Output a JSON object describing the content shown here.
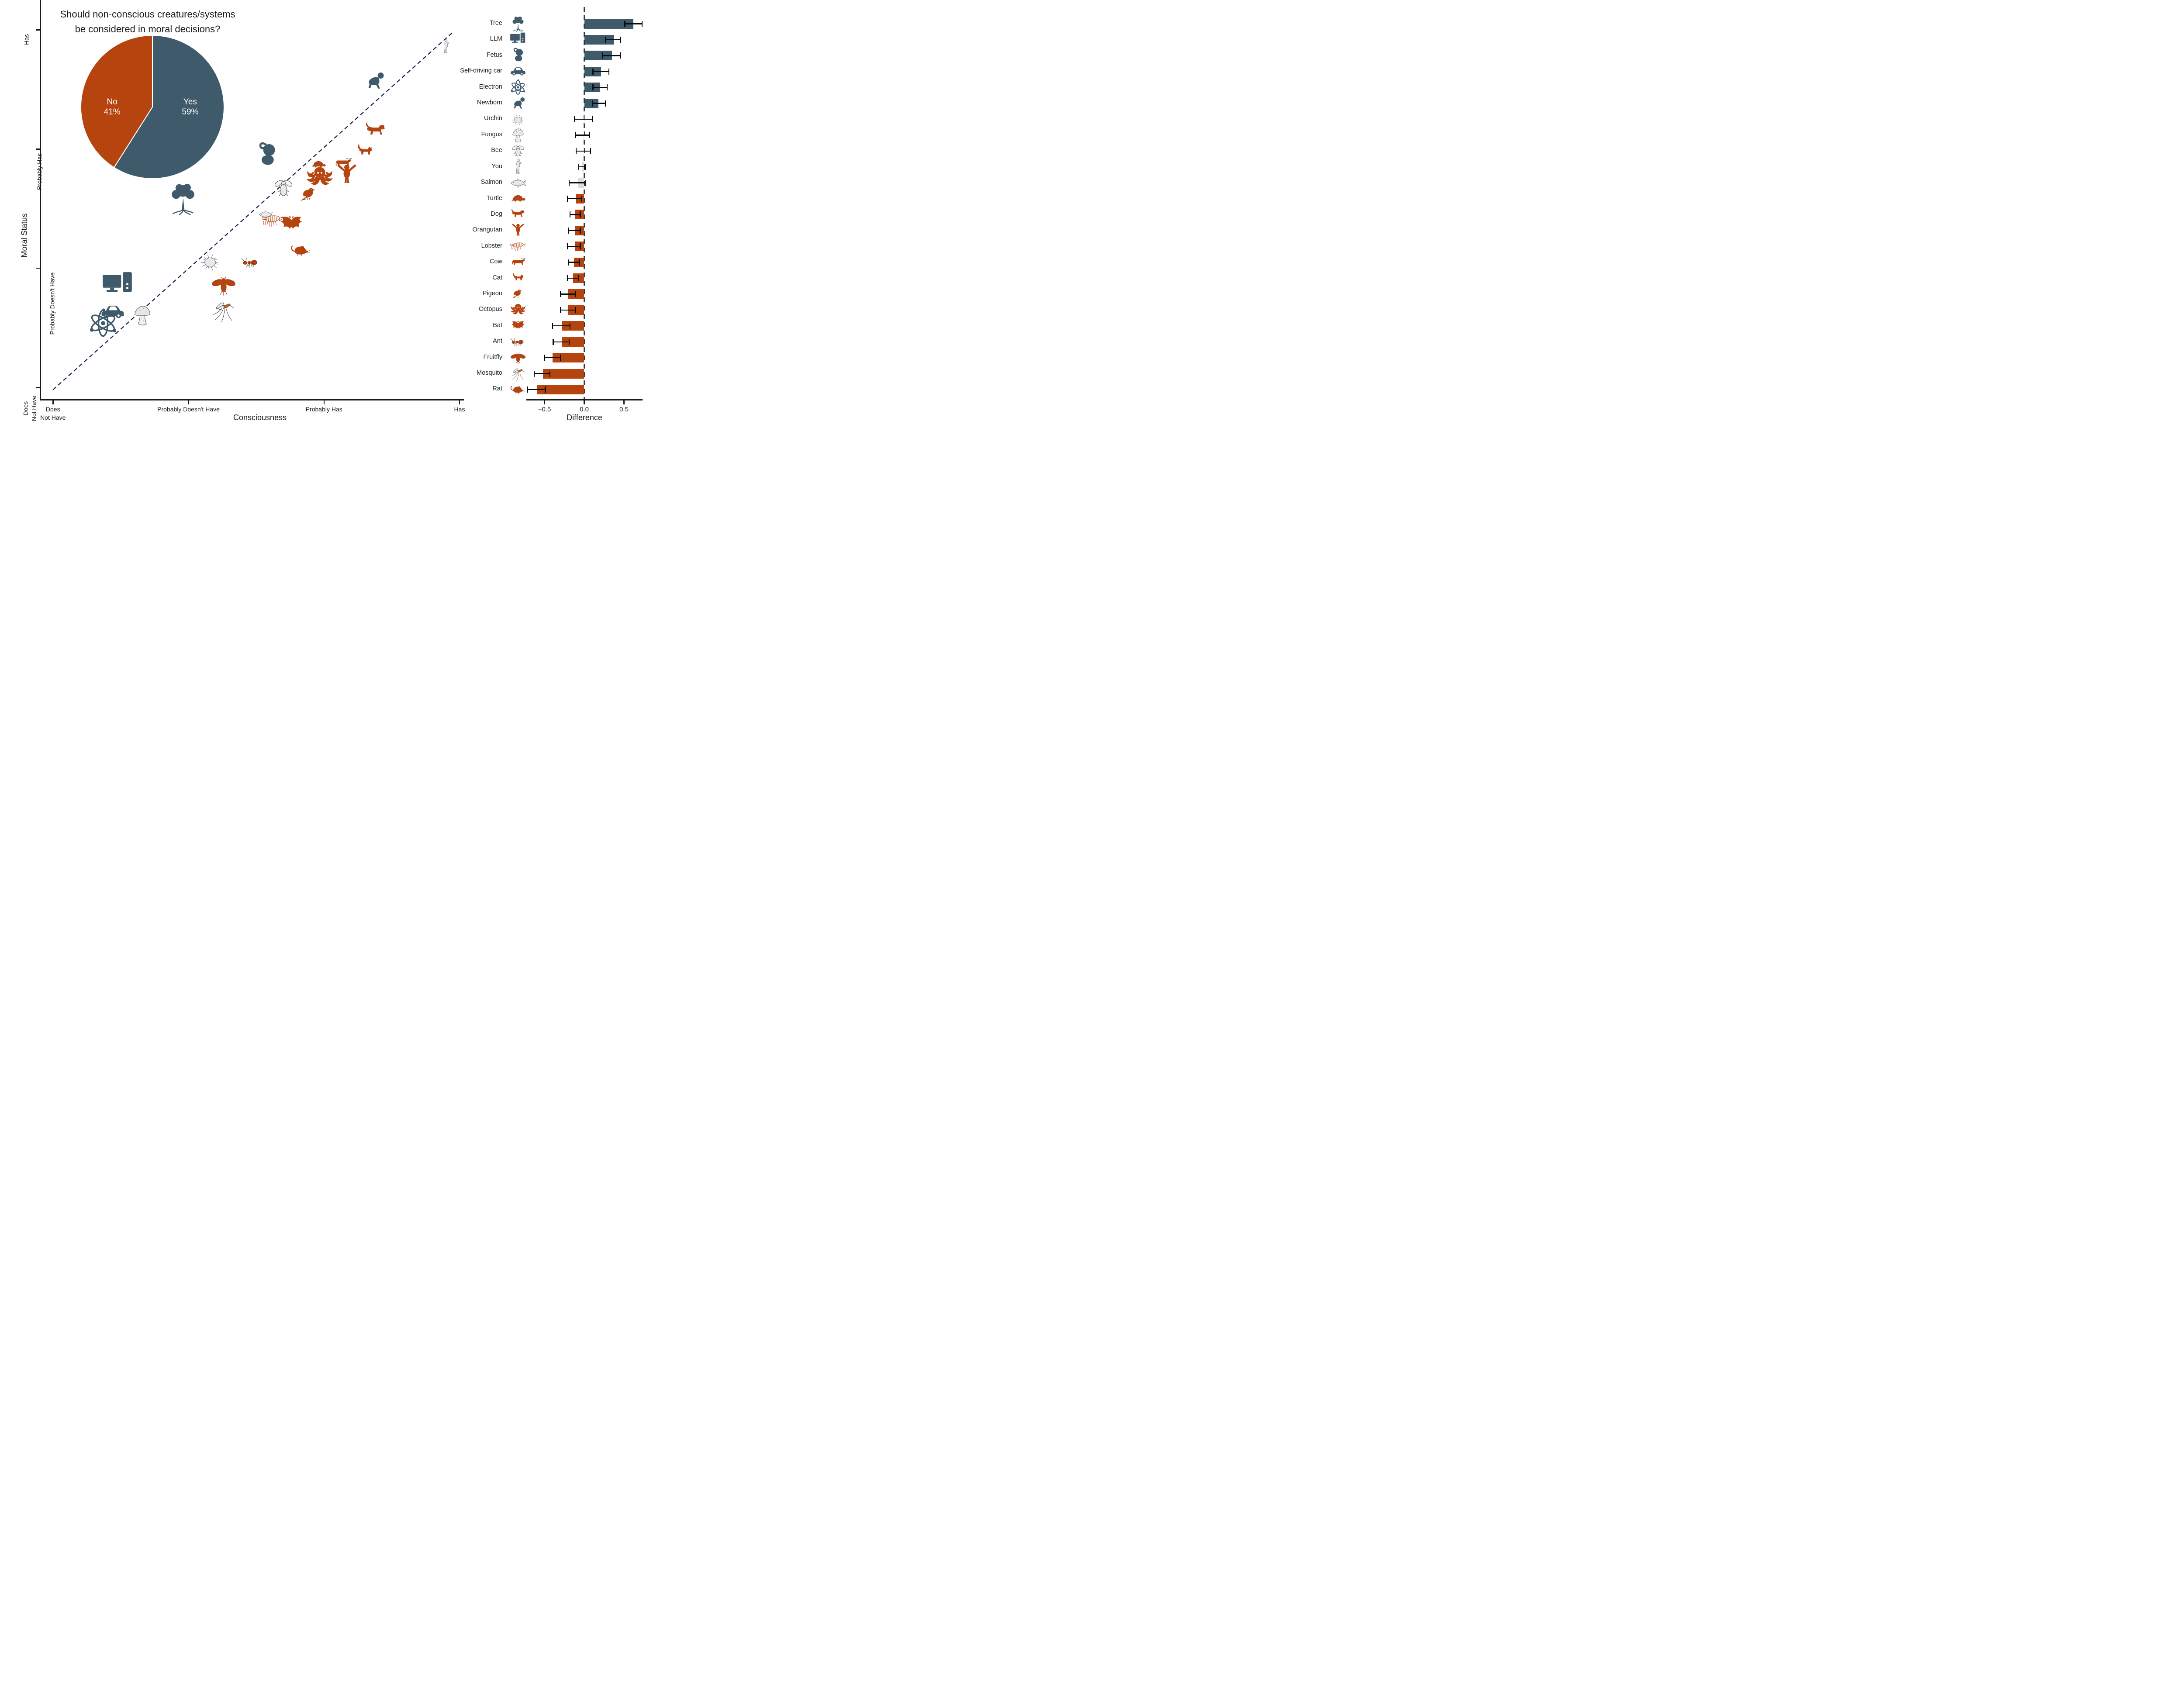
{
  "palette": {
    "blue": "#3E5A6B",
    "orange": "#B5440F",
    "gray_fill": "#E8E8E8",
    "gray_stroke": "#4a4a4a",
    "gray_bar": "#DCDCDC",
    "identity_line": "#1B2150",
    "zero_line": "#0a0a0a",
    "text": "#1a1a1a",
    "background": "#ffffff"
  },
  "chart_data": [
    {
      "type": "pie",
      "title_line1": "Should non-conscious creatures/systems",
      "title_line2": "be considered in moral decisions?",
      "slices": [
        {
          "label": "Yes",
          "pct": 59,
          "color_key": "blue",
          "label_side": "right"
        },
        {
          "label": "No",
          "pct": 41,
          "color_key": "orange",
          "label_side": "left"
        }
      ],
      "start": "top",
      "direction": "clockwise"
    },
    {
      "type": "scatter",
      "xlabel": "Consciousness",
      "ylabel": "Moral Status",
      "x_tick_labels": [
        [
          "Does",
          "Not Have"
        ],
        [
          "Probably Doesn't Have"
        ],
        [
          "Probably Has"
        ],
        [
          "Has"
        ]
      ],
      "y_tick_labels": [
        [
          "Does",
          "Not Have"
        ],
        [
          "Probably Doesn't Have"
        ],
        [
          "Probably Has"
        ],
        [
          "Has"
        ]
      ],
      "axis_categories": [
        1,
        2,
        3,
        4
      ],
      "identity_line": true,
      "points": [
        {
          "label": "Tree",
          "icon": "tree",
          "x": 1.96,
          "y": 2.58,
          "w": 78,
          "h": 78,
          "group": "blue"
        },
        {
          "label": "LLM",
          "icon": "computer",
          "x": 1.48,
          "y": 1.85,
          "w": 84,
          "h": 74,
          "group": "blue"
        },
        {
          "label": "Fetus",
          "icon": "fetus",
          "x": 2.58,
          "y": 2.95,
          "w": 64,
          "h": 70,
          "group": "blue"
        },
        {
          "label": "Self-driving car",
          "icon": "car",
          "x": 1.44,
          "y": 1.63,
          "w": 80,
          "h": 58,
          "group": "blue"
        },
        {
          "label": "Electron",
          "icon": "atom",
          "x": 1.37,
          "y": 1.54,
          "w": 76,
          "h": 70,
          "group": "blue"
        },
        {
          "label": "Newborn",
          "icon": "baby",
          "x": 3.37,
          "y": 3.57,
          "w": 64,
          "h": 54,
          "group": "blue"
        },
        {
          "label": "Urchin",
          "icon": "urchin",
          "x": 2.16,
          "y": 2.06,
          "w": 64,
          "h": 58,
          "group": "gray"
        },
        {
          "label": "Fungus",
          "icon": "fungus",
          "x": 1.66,
          "y": 1.61,
          "w": 54,
          "h": 80,
          "group": "gray"
        },
        {
          "label": "Bee",
          "icon": "bee",
          "x": 2.7,
          "y": 2.67,
          "w": 58,
          "h": 56,
          "group": "gray"
        },
        {
          "label": "You",
          "icon": "human",
          "x": 3.9,
          "y": 3.86,
          "w": 34,
          "h": 88,
          "group": "gray"
        },
        {
          "label": "Salmon",
          "icon": "fish",
          "x": 2.57,
          "y": 2.45,
          "w": 74,
          "h": 34,
          "group": "gray"
        },
        {
          "label": "Turtle",
          "icon": "turtle",
          "x": 2.96,
          "y": 2.87,
          "w": 58,
          "h": 38,
          "group": "orange"
        },
        {
          "label": "Dog",
          "icon": "dog",
          "x": 3.38,
          "y": 3.15,
          "w": 66,
          "h": 56,
          "group": "orange"
        },
        {
          "label": "Orangutan",
          "icon": "orangutan",
          "x": 3.17,
          "y": 2.78,
          "w": 60,
          "h": 66,
          "group": "orange"
        },
        {
          "label": "Lobster",
          "icon": "lobster",
          "x": 2.62,
          "y": 2.4,
          "w": 68,
          "h": 52,
          "group": "orange"
        },
        {
          "label": "Cow",
          "icon": "cow",
          "x": 3.14,
          "y": 2.88,
          "w": 64,
          "h": 46,
          "group": "orange"
        },
        {
          "label": "Cat",
          "icon": "cat",
          "x": 3.3,
          "y": 2.98,
          "w": 62,
          "h": 52,
          "group": "orange"
        },
        {
          "label": "Pigeon",
          "icon": "pigeon",
          "x": 2.89,
          "y": 2.62,
          "w": 58,
          "h": 56,
          "group": "orange"
        },
        {
          "label": "Octopus",
          "icon": "octopus",
          "x": 2.97,
          "y": 2.76,
          "w": 66,
          "h": 66,
          "group": "orange"
        },
        {
          "label": "Bat",
          "icon": "bat",
          "x": 2.76,
          "y": 2.37,
          "w": 64,
          "h": 62,
          "group": "orange"
        },
        {
          "label": "Ant",
          "icon": "ant",
          "x": 2.46,
          "y": 2.05,
          "w": 58,
          "h": 46,
          "group": "orange"
        },
        {
          "label": "Fruitfly",
          "icon": "fruitfly",
          "x": 2.26,
          "y": 1.86,
          "w": 60,
          "h": 64,
          "group": "orange"
        },
        {
          "label": "Mosquito",
          "icon": "mosquito",
          "x": 2.26,
          "y": 1.64,
          "w": 60,
          "h": 80,
          "group": "gray"
        },
        {
          "label": "Rat",
          "icon": "rat",
          "x": 2.83,
          "y": 2.15,
          "w": 60,
          "h": 50,
          "group": "orange"
        }
      ]
    },
    {
      "type": "bar",
      "orientation": "horizontal",
      "xlabel": "Difference",
      "xlim": [
        -0.75,
        0.75
      ],
      "x_ticks": [
        {
          "value": -0.5,
          "label": "−0.5"
        },
        {
          "value": 0.0,
          "label": "0.0"
        },
        {
          "value": 0.5,
          "label": "0.5"
        }
      ],
      "zero_line": true,
      "items": [
        {
          "label": "Tree",
          "icon": "tree",
          "icon_group": "blue",
          "bar_group": "blue",
          "value": 0.62,
          "ci": [
            0.51,
            0.73
          ]
        },
        {
          "label": "LLM",
          "icon": "computer",
          "icon_group": "blue",
          "bar_group": "blue",
          "value": 0.37,
          "ci": [
            0.27,
            0.46
          ]
        },
        {
          "label": "Fetus",
          "icon": "fetus",
          "icon_group": "blue",
          "bar_group": "blue",
          "value": 0.35,
          "ci": [
            0.23,
            0.46
          ]
        },
        {
          "label": "Self-driving car",
          "icon": "car",
          "icon_group": "blue",
          "bar_group": "blue",
          "value": 0.21,
          "ci": [
            0.11,
            0.31
          ]
        },
        {
          "label": "Electron",
          "icon": "atom",
          "icon_group": "blue",
          "bar_group": "blue",
          "value": 0.2,
          "ci": [
            0.11,
            0.29
          ]
        },
        {
          "label": "Newborn",
          "icon": "baby",
          "icon_group": "blue",
          "bar_group": "blue",
          "value": 0.18,
          "ci": [
            0.1,
            0.27
          ]
        },
        {
          "label": "Urchin",
          "icon": "urchin",
          "icon_group": "gray",
          "bar_group": "gray",
          "value": -0.005,
          "ci": [
            -0.12,
            0.1
          ]
        },
        {
          "label": "Fungus",
          "icon": "fungus",
          "icon_group": "gray",
          "bar_group": "gray",
          "value": -0.01,
          "ci": [
            -0.11,
            0.07
          ]
        },
        {
          "label": "Bee",
          "icon": "bee",
          "icon_group": "gray",
          "bar_group": "gray",
          "value": -0.01,
          "ci": [
            -0.1,
            0.08
          ]
        },
        {
          "label": "You",
          "icon": "human",
          "icon_group": "gray",
          "bar_group": "gray",
          "value": -0.03,
          "ci": [
            -0.07,
            0.01
          ]
        },
        {
          "label": "Salmon",
          "icon": "fish",
          "icon_group": "gray",
          "bar_group": "gray",
          "value": -0.08,
          "ci": [
            -0.19,
            0.02
          ]
        },
        {
          "label": "Turtle",
          "icon": "turtle",
          "icon_group": "orange",
          "bar_group": "orange",
          "value": -0.1,
          "ci": [
            -0.21,
            -0.03
          ]
        },
        {
          "label": "Dog",
          "icon": "dog",
          "icon_group": "orange",
          "bar_group": "orange",
          "value": -0.11,
          "ci": [
            -0.18,
            -0.05
          ]
        },
        {
          "label": "Orangutan",
          "icon": "orangutan",
          "icon_group": "orange",
          "bar_group": "orange",
          "value": -0.12,
          "ci": [
            -0.2,
            -0.05
          ]
        },
        {
          "label": "Lobster",
          "icon": "lobster",
          "icon_group": "orange",
          "bar_group": "orange",
          "value": -0.12,
          "ci": [
            -0.21,
            -0.05
          ]
        },
        {
          "label": "Cow",
          "icon": "cow",
          "icon_group": "orange",
          "bar_group": "orange",
          "value": -0.13,
          "ci": [
            -0.2,
            -0.06
          ]
        },
        {
          "label": "Cat",
          "icon": "cat",
          "icon_group": "orange",
          "bar_group": "orange",
          "value": -0.14,
          "ci": [
            -0.21,
            -0.07
          ]
        },
        {
          "label": "Pigeon",
          "icon": "pigeon",
          "icon_group": "orange",
          "bar_group": "orange",
          "value": -0.2,
          "ci": [
            -0.3,
            -0.11
          ]
        },
        {
          "label": "Octopus",
          "icon": "octopus",
          "icon_group": "orange",
          "bar_group": "orange",
          "value": -0.2,
          "ci": [
            -0.3,
            -0.11
          ]
        },
        {
          "label": "Bat",
          "icon": "bat",
          "icon_group": "orange",
          "bar_group": "orange",
          "value": -0.28,
          "ci": [
            -0.4,
            -0.18
          ]
        },
        {
          "label": "Ant",
          "icon": "ant",
          "icon_group": "orange",
          "bar_group": "orange",
          "value": -0.28,
          "ci": [
            -0.39,
            -0.19
          ]
        },
        {
          "label": "Fruitfly",
          "icon": "fruitfly",
          "icon_group": "orange",
          "bar_group": "orange",
          "value": -0.4,
          "ci": [
            -0.5,
            -0.3
          ]
        },
        {
          "label": "Mosquito",
          "icon": "mosquito",
          "icon_group": "gray",
          "bar_group": "orange",
          "value": -0.52,
          "ci": [
            -0.63,
            -0.43
          ]
        },
        {
          "label": "Rat",
          "icon": "rat",
          "icon_group": "orange",
          "bar_group": "orange",
          "value": -0.59,
          "ci": [
            -0.71,
            -0.49
          ]
        }
      ]
    }
  ]
}
